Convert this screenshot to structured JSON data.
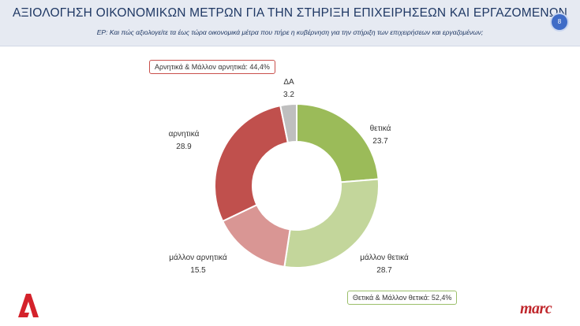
{
  "header": {
    "title": "ΑΞΙΟΛΟΓΗΣΗ ΟΙΚΟΝΟΜΙΚΩΝ ΜΕΤΡΩΝ ΓΙΑ ΤΗΝ ΣΤΗΡΙΞΗ ΕΠΙΧΕΙΡΗΣΕΩΝ ΚΑΙ ΕΡΓΑΖΟΜΕΝΩΝ",
    "subtitle": "ΕΡ: Και πώς αξιολογείτε  τα έως τώρα οικονομικά μέτρα που πήρε η κυβέρνηση για την στήριξη των επιχειρήσεων και εργαζομένων;",
    "page_number": "8"
  },
  "summary": {
    "negative": "Αρνητικά & Μάλλον αρνητικά: 44,4%",
    "positive": "Θετικά & Μάλλον θετικά: 52,4%"
  },
  "logos": {
    "alpha": "Α",
    "marc": "marc"
  },
  "colors": {
    "positive": "#9bbb59",
    "rather_positive": "#c3d69b",
    "rather_negative": "#d99694",
    "negative": "#c0504d",
    "dont_know": "#bfbfbf"
  },
  "chart_data": {
    "type": "pie",
    "donut": true,
    "categories": [
      "θετικά",
      "μάλλον θετικά",
      "μάλλον αρνητικά",
      "αρνητικά",
      "ΔΑ"
    ],
    "values": [
      23.7,
      28.7,
      15.5,
      28.9,
      3.2
    ],
    "value_labels": [
      "23.7",
      "28.7",
      "15.5",
      "28.9",
      "3.2"
    ],
    "colors": [
      "#9bbb59",
      "#c3d69b",
      "#d99694",
      "#c0504d",
      "#bfbfbf"
    ]
  }
}
